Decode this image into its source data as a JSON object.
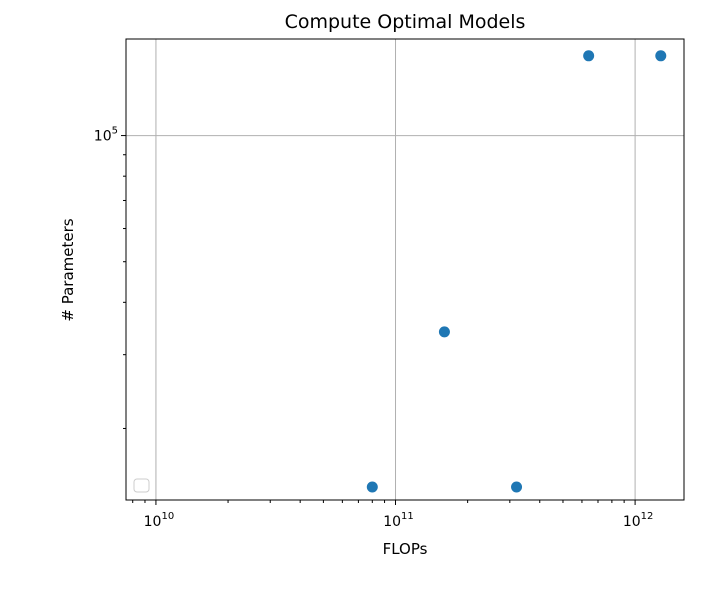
{
  "chart_data": {
    "type": "scatter",
    "title": "Compute Optimal Models",
    "xlabel": "FLOPs",
    "ylabel": "# Parameters",
    "xscale": "log",
    "yscale": "log",
    "xlim": [
      7500000000.0,
      1600000000000.0
    ],
    "ylim": [
      13500.0,
      170000.0
    ],
    "grid": true,
    "legend": "lower-left (empty)",
    "marker_color": "#1f77b4",
    "x_tick_labels": [
      {
        "value": 10000000000.0,
        "base": "10",
        "exp": "10"
      },
      {
        "value": 100000000000.0,
        "base": "10",
        "exp": "11"
      },
      {
        "value": 1000000000000.0,
        "base": "10",
        "exp": "12"
      }
    ],
    "y_tick_labels": [
      {
        "value": 100000.0,
        "base": "10",
        "exp": "5"
      }
    ],
    "points": [
      {
        "x": 80000000000.0,
        "y": 14500.0
      },
      {
        "x": 160000000000.0,
        "y": 34000.0
      },
      {
        "x": 320000000000.0,
        "y": 14500.0
      },
      {
        "x": 640000000000.0,
        "y": 155000.0
      },
      {
        "x": 1280000000000.0,
        "y": 155000.0
      }
    ]
  }
}
